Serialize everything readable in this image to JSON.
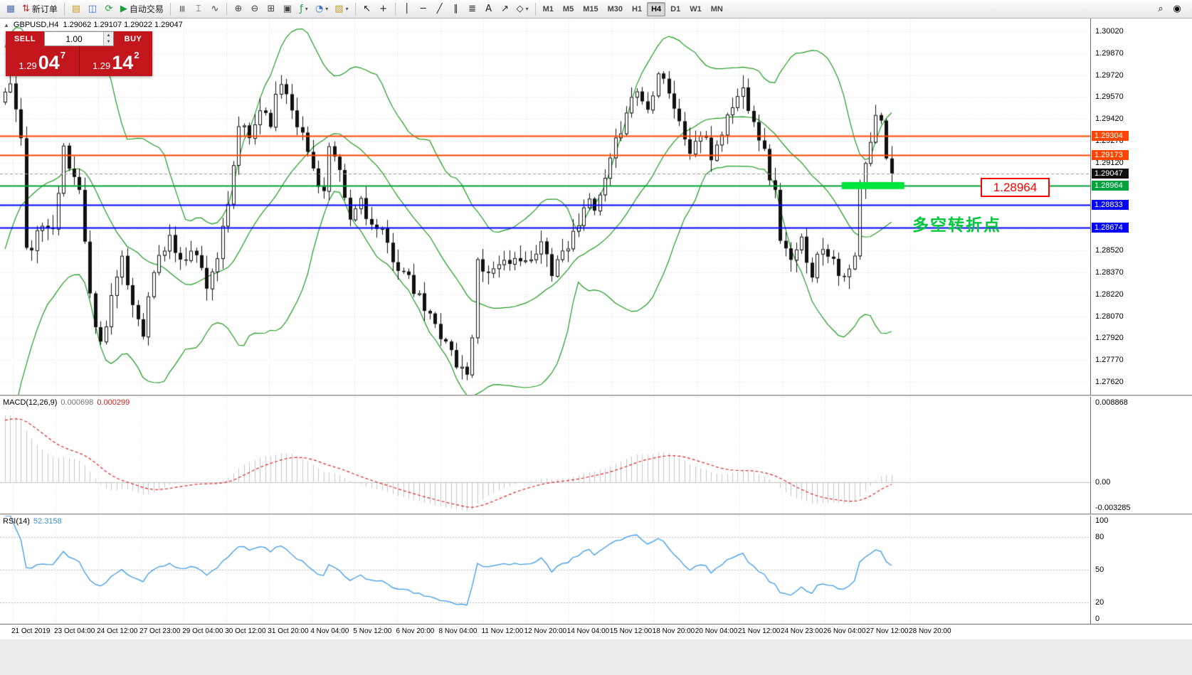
{
  "icons": {
    "dropdown": "▾",
    "collapse": "▲",
    "spinner_up": "▲",
    "spinner_down": "▼"
  },
  "toolbar": {
    "items": [
      {
        "t": "btn",
        "name": "new-chart-icon",
        "g": "▦",
        "c": "#4a6fa5"
      },
      {
        "t": "btn",
        "name": "new-order-icon",
        "g": "⇅",
        "c": "#c62828",
        "label": "新订单"
      },
      {
        "t": "sep"
      },
      {
        "t": "btn",
        "name": "profiles-icon",
        "g": "▤",
        "c": "#c29b2c"
      },
      {
        "t": "btn",
        "name": "market-watch-icon",
        "g": "◫",
        "c": "#3b6fd4"
      },
      {
        "t": "btn",
        "name": "refresh-icon",
        "g": "⟳",
        "c": "#1f9d3a"
      },
      {
        "t": "btn",
        "name": "autotrade-icon",
        "g": "▶",
        "c": "#18a03c",
        "label": "自动交易"
      },
      {
        "t": "sep"
      },
      {
        "t": "btn",
        "name": "bar-chart-icon",
        "g": "≡",
        "c": "#444",
        "rot": true
      },
      {
        "t": "btn",
        "name": "candlestick-chart-icon",
        "g": "⌶",
        "c": "#444"
      },
      {
        "t": "btn",
        "name": "line-chart-icon",
        "g": "∿",
        "c": "#444"
      },
      {
        "t": "sep"
      },
      {
        "t": "btn",
        "name": "zoom-in-icon",
        "g": "⊕",
        "c": "#444"
      },
      {
        "t": "btn",
        "name": "zoom-out-icon",
        "g": "⊖",
        "c": "#444"
      },
      {
        "t": "btn",
        "name": "tile-windows-icon",
        "g": "⊞",
        "c": "#444"
      },
      {
        "t": "btn",
        "name": "auto-arrange-icon",
        "g": "▣",
        "c": "#444"
      },
      {
        "t": "btn",
        "name": "indicators-icon",
        "g": "ƒ",
        "c": "#1f9d3a",
        "dd": true
      },
      {
        "t": "btn",
        "name": "periods-icon",
        "g": "◔",
        "c": "#3b6fd4",
        "dd": true
      },
      {
        "t": "btn",
        "name": "templates-icon",
        "g": "▧",
        "c": "#c29b2c",
        "dd": true
      },
      {
        "t": "sep"
      },
      {
        "t": "btn",
        "name": "cursor-icon",
        "g": "↖",
        "c": "#222"
      },
      {
        "t": "btn",
        "name": "crosshair-icon",
        "g": "+",
        "c": "#222"
      },
      {
        "t": "sep"
      },
      {
        "t": "btn",
        "name": "vertical-line-icon",
        "g": "│",
        "c": "#222"
      },
      {
        "t": "btn",
        "name": "horizontal-line-icon",
        "g": "─",
        "c": "#222"
      },
      {
        "t": "btn",
        "name": "trendline-icon",
        "g": "╱",
        "c": "#222"
      },
      {
        "t": "btn",
        "name": "channel-icon",
        "g": "∥",
        "c": "#222"
      },
      {
        "t": "btn",
        "name": "fibonacci-icon",
        "g": "≣",
        "c": "#222"
      },
      {
        "t": "btn",
        "name": "text-icon",
        "g": "A",
        "c": "#222"
      },
      {
        "t": "btn",
        "name": "arrow-tool-icon",
        "g": "↗",
        "c": "#222"
      },
      {
        "t": "btn",
        "name": "shapes-icon",
        "g": "◇",
        "c": "#222",
        "dd": true
      },
      {
        "t": "sep"
      }
    ],
    "timeframes": [
      "M1",
      "M5",
      "M15",
      "M30",
      "H1",
      "H4",
      "D1",
      "W1",
      "MN"
    ],
    "active_timeframe": "H4",
    "right_items": [
      {
        "name": "search-icon",
        "g": "⌕"
      },
      {
        "name": "community-icon",
        "g": "◉"
      }
    ]
  },
  "chart": {
    "title_symbol": "GBPUSD,H4",
    "title_ohlc": "1.29062 1.29107 1.29022 1.29047"
  },
  "trade_panel": {
    "sell_label": "SELL",
    "buy_label": "BUY",
    "volume": "1.00",
    "sell_price_main": "1.29",
    "sell_price_big": "04",
    "sell_price_sup": "7",
    "buy_price_main": "1.29",
    "buy_price_big": "14",
    "buy_price_sup": "2"
  },
  "annotations": {
    "price_callout": "1.28964",
    "pivot_text": "多空转折点"
  },
  "levels": [
    {
      "price": 1.29304,
      "label": "1.29304",
      "color": "#ff4500"
    },
    {
      "price": 1.29173,
      "label": "1.29173",
      "color": "#ff4500"
    },
    {
      "price": 1.29047,
      "label": "1.29047",
      "color": "#111111",
      "style": "bid"
    },
    {
      "price": 1.28964,
      "label": "1.28964",
      "color": "#00a33c"
    },
    {
      "price": 1.28833,
      "label": "1.28833",
      "color": "#0000ff"
    },
    {
      "price": 1.28674,
      "label": "1.28674",
      "color": "#0000ff"
    }
  ],
  "highlight": {
    "price": 1.28964,
    "bar_start": 158,
    "bar_end": 169,
    "color": "#00e53c"
  },
  "price_axis": {
    "ticks": [
      1.3002,
      1.2987,
      1.2972,
      1.2957,
      1.2942,
      1.2927,
      1.2912,
      1.2897,
      1.2882,
      1.2867,
      1.2852,
      1.2837,
      1.2822,
      1.2807,
      1.2792,
      1.2777,
      1.2762
    ]
  },
  "macd": {
    "label": "MACD(12,26,9)",
    "value_main": "0.000698",
    "value_signal": "0.000299",
    "axis": [
      "0.008868",
      "0.00",
      "-0.003285"
    ]
  },
  "rsi": {
    "label": "RSI(14)",
    "value": "52.3158",
    "axis": [
      "100",
      "80",
      "50",
      "20",
      "0"
    ],
    "levels": [
      80,
      50,
      20
    ]
  },
  "time_axis": [
    "21 Oct 2019",
    "23 Oct 04:00",
    "24 Oct 12:00",
    "27 Oct 23:00",
    "29 Oct 04:00",
    "30 Oct 12:00",
    "31 Oct 20:00",
    "4 Nov 04:00",
    "5 Nov 12:00",
    "6 Nov 20:00",
    "8 Nov 04:00",
    "11 Nov 12:00",
    "12 Nov 20:00",
    "14 Nov 04:00",
    "15 Nov 12:00",
    "18 Nov 20:00",
    "20 Nov 04:00",
    "21 Nov 12:00",
    "24 Nov 23:00",
    "26 Nov 04:00",
    "27 Nov 12:00",
    "28 Nov 20:00"
  ],
  "chart_data": {
    "type": "candlestick",
    "symbol": "GBPUSD",
    "timeframe": "H4",
    "bars": 168,
    "ylim": [
      1.27532,
      1.30108
    ],
    "last_close": 1.29047,
    "bollinger": {
      "period": 20,
      "deviation": 2,
      "color": "#219a21"
    },
    "indicators": [
      {
        "type": "MACD",
        "params": [
          12,
          26,
          9
        ],
        "last": [
          0.000698,
          0.000299
        ],
        "ylim": [
          -0.003285,
          0.008868
        ]
      },
      {
        "type": "RSI",
        "params": [
          14
        ],
        "last": 52.3158,
        "ylim": [
          0,
          100
        ]
      }
    ],
    "close_anchors": [
      [
        0,
        1.2958
      ],
      [
        1,
        1.2968
      ],
      [
        3,
        1.2928
      ],
      [
        4,
        1.285
      ],
      [
        6,
        1.2862
      ],
      [
        9,
        1.2872
      ],
      [
        11,
        1.292
      ],
      [
        12,
        1.2908
      ],
      [
        14,
        1.2896
      ],
      [
        16,
        1.282
      ],
      [
        18,
        1.2788
      ],
      [
        20,
        1.2822
      ],
      [
        22,
        1.2843
      ],
      [
        24,
        1.2815
      ],
      [
        26,
        1.2798
      ],
      [
        28,
        1.2838
      ],
      [
        31,
        1.2862
      ],
      [
        33,
        1.2842
      ],
      [
        35,
        1.2856
      ],
      [
        38,
        1.283
      ],
      [
        40,
        1.2848
      ],
      [
        42,
        1.288
      ],
      [
        44,
        1.2938
      ],
      [
        46,
        1.2928
      ],
      [
        48,
        1.295
      ],
      [
        50,
        1.2942
      ],
      [
        52,
        1.2968
      ],
      [
        54,
        1.2952
      ],
      [
        56,
        1.293
      ],
      [
        58,
        1.2908
      ],
      [
        60,
        1.2892
      ],
      [
        61,
        1.2922
      ],
      [
        63,
        1.2902
      ],
      [
        65,
        1.2872
      ],
      [
        67,
        1.2888
      ],
      [
        69,
        1.2868
      ],
      [
        71,
        1.2862
      ],
      [
        73,
        1.2848
      ],
      [
        75,
        1.2836
      ],
      [
        77,
        1.2824
      ],
      [
        79,
        1.2812
      ],
      [
        81,
        1.28
      ],
      [
        83,
        1.2792
      ],
      [
        85,
        1.2772
      ],
      [
        87,
        1.277
      ],
      [
        88,
        1.279
      ],
      [
        89,
        1.2848
      ],
      [
        91,
        1.2836
      ],
      [
        93,
        1.2846
      ],
      [
        95,
        1.2838
      ],
      [
        97,
        1.285
      ],
      [
        99,
        1.2842
      ],
      [
        101,
        1.2856
      ],
      [
        103,
        1.284
      ],
      [
        105,
        1.2852
      ],
      [
        107,
        1.2862
      ],
      [
        109,
        1.2886
      ],
      [
        111,
        1.2878
      ],
      [
        113,
        1.2898
      ],
      [
        115,
        1.2924
      ],
      [
        117,
        1.295
      ],
      [
        119,
        1.2962
      ],
      [
        121,
        1.2948
      ],
      [
        123,
        1.2978
      ],
      [
        125,
        1.2962
      ],
      [
        127,
        1.2938
      ],
      [
        129,
        1.292
      ],
      [
        131,
        1.2932
      ],
      [
        133,
        1.2916
      ],
      [
        135,
        1.2934
      ],
      [
        137,
        1.2952
      ],
      [
        139,
        1.2962
      ],
      [
        141,
        1.2944
      ],
      [
        143,
        1.2918
      ],
      [
        145,
        1.289
      ],
      [
        146,
        1.2862
      ],
      [
        148,
        1.2842
      ],
      [
        150,
        1.2858
      ],
      [
        152,
        1.2838
      ],
      [
        154,
        1.2856
      ],
      [
        156,
        1.2848
      ],
      [
        158,
        1.283
      ],
      [
        160,
        1.2846
      ],
      [
        161,
        1.2894
      ],
      [
        163,
        1.2924
      ],
      [
        164,
        1.2946
      ],
      [
        165,
        1.2938
      ],
      [
        166,
        1.2918
      ],
      [
        167,
        1.29047
      ]
    ]
  }
}
